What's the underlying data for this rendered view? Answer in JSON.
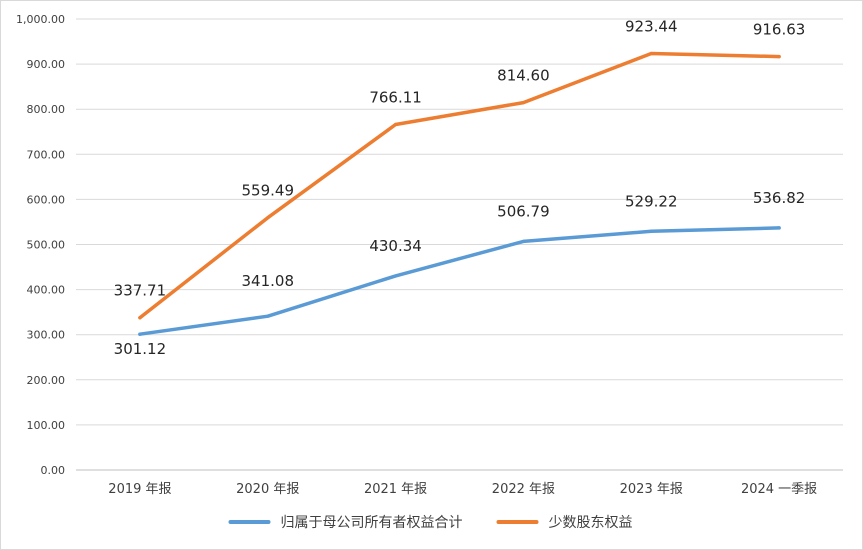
{
  "chart_data": {
    "type": "line",
    "title": "",
    "xlabel": "",
    "ylabel": "",
    "categories": [
      "2019 年报",
      "2020 年报",
      "2021 年报",
      "2022 年报",
      "2023 年报",
      "2024 一季报"
    ],
    "series": [
      {
        "name": "归属于母公司所有者权益合计",
        "color": "#5b9bd5",
        "values": [
          301.12,
          341.08,
          430.34,
          506.79,
          529.22,
          536.82
        ],
        "labels": [
          "301.12",
          "341.08",
          "430.34",
          "506.79",
          "529.22",
          "536.82"
        ]
      },
      {
        "name": "少数股东权益",
        "color": "#ed7d31",
        "values": [
          337.71,
          559.49,
          766.11,
          814.6,
          923.44,
          916.63
        ],
        "labels": [
          "337.71",
          "559.49",
          "766.11",
          "814.60",
          "923.44",
          "916.63"
        ]
      }
    ],
    "ylim": [
      0,
      1000
    ],
    "yticks": [
      "0.00",
      "100.00",
      "200.00",
      "300.00",
      "400.00",
      "500.00",
      "600.00",
      "700.00",
      "800.00",
      "900.00",
      "1,000.00"
    ],
    "grid": true,
    "legend_position": "bottom"
  }
}
